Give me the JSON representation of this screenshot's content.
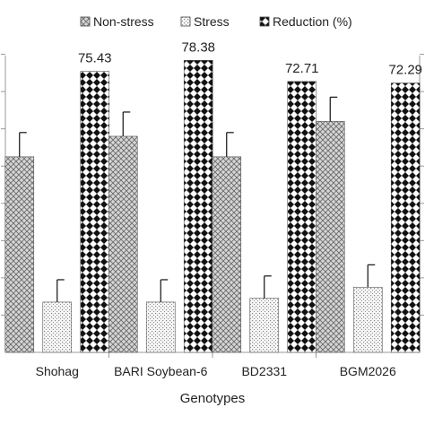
{
  "chart_data": {
    "type": "bar",
    "xlabel": "Genotypes",
    "categories": [
      "Shohag",
      "BARI Soybean-6",
      "BD2331",
      "BGM2026"
    ],
    "series": [
      {
        "name": "Non-stress",
        "pattern": "crosshatch",
        "values": [
          52.5,
          58.0,
          52.5,
          62.0
        ],
        "errors": [
          6.5,
          6.5,
          6.5,
          6.5
        ]
      },
      {
        "name": "Stress",
        "pattern": "dots",
        "values": [
          13.5,
          13.5,
          14.5,
          17.5
        ],
        "errors": [
          6.0,
          6.0,
          6.0,
          6.0
        ]
      },
      {
        "name": "Reduction (%)",
        "pattern": "checker",
        "values": [
          75.43,
          78.38,
          72.71,
          72.29
        ],
        "data_labels": [
          "75.43",
          "78.38",
          "72.71",
          "72.29"
        ]
      }
    ],
    "ylim": [
      0,
      90
    ],
    "legend_position": "top",
    "grid": false
  }
}
